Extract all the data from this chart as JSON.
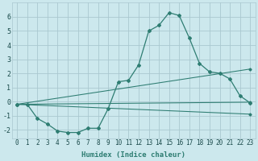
{
  "background_color": "#cce8ed",
  "grid_color": "#aac8d0",
  "line_color": "#2e7d72",
  "xlabel": "Humidex (Indice chaleur)",
  "xlim": [
    -0.5,
    23.5
  ],
  "ylim": [
    -2.6,
    7.0
  ],
  "yticks": [
    -2,
    -1,
    0,
    1,
    2,
    3,
    4,
    5,
    6
  ],
  "xticks": [
    0,
    1,
    2,
    3,
    4,
    5,
    6,
    7,
    8,
    9,
    10,
    11,
    12,
    13,
    14,
    15,
    16,
    17,
    18,
    19,
    20,
    21,
    22,
    23
  ],
  "line1_x": [
    0,
    1,
    2,
    3,
    4,
    5,
    6,
    7,
    8,
    9,
    10,
    11,
    12,
    13,
    14,
    15,
    16,
    17,
    18,
    19,
    20,
    21,
    22,
    23
  ],
  "line1_y": [
    -0.2,
    -0.2,
    -1.2,
    -1.6,
    -2.1,
    -2.2,
    -2.2,
    -1.9,
    -1.9,
    -0.5,
    1.4,
    1.5,
    2.6,
    5.0,
    5.4,
    6.3,
    6.1,
    4.5,
    2.7,
    2.1,
    2.0,
    1.6,
    0.4,
    -0.1
  ],
  "line2_x": [
    0,
    23
  ],
  "line2_y": [
    -0.2,
    2.3
  ],
  "line3_x": [
    0,
    23
  ],
  "line3_y": [
    -0.2,
    -0.05
  ],
  "line4_x": [
    0,
    23
  ],
  "line4_y": [
    -0.2,
    -0.9
  ],
  "marker_style": "D",
  "marker_size": 2.0,
  "line_width": 0.9,
  "tick_fontsize": 5.5,
  "xlabel_fontsize": 6.5
}
